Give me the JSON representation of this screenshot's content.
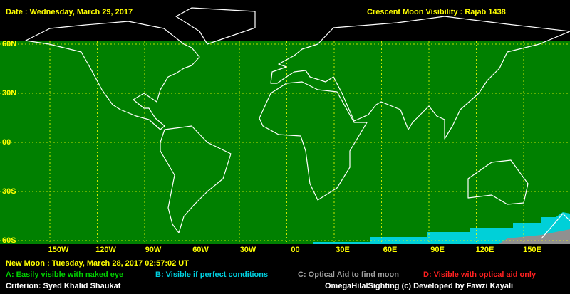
{
  "header": {
    "date": "Date : Wednesday, March 29, 2017",
    "title": "Crescent Moon Visibility : Rajab  1438"
  },
  "map": {
    "lat_labels": [
      "60N",
      "30N",
      "00",
      "30S",
      "60S"
    ],
    "lon_labels": [
      "150W",
      "120W",
      "90W",
      "60W",
      "30W",
      "00",
      "30E",
      "60E",
      "90E",
      "120E",
      "150E"
    ]
  },
  "footer": {
    "new_moon": "New Moon : Tuesday, March 28, 2017  02:57:02  UT",
    "legend": [
      "A: Easily visible with naked eye",
      "B: Visible if perfect conditions",
      "C: Optical Aid to find moon",
      "D: Visible with optical aid only"
    ],
    "criterion": "Criterion: Syed Khalid Shaukat",
    "credit": "OmegaHilalSighting  (c)  Developed by Fawzi Kayali"
  }
}
